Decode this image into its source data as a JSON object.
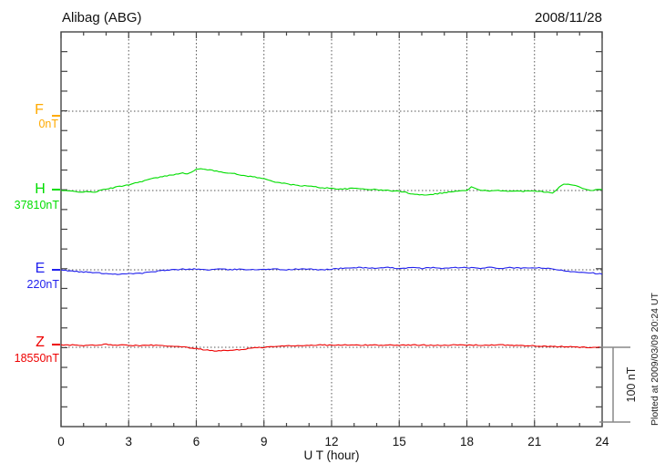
{
  "header": {
    "station": "Alibag (ABG)",
    "date": "2008/11/28"
  },
  "axis": {
    "xlabel": "U T (hour)",
    "ticks": [
      "0",
      "3",
      "6",
      "9",
      "12",
      "15",
      "18",
      "21",
      "24"
    ]
  },
  "scale_bar": {
    "label": "100 nT"
  },
  "footer": {
    "plotted_at": "Plotted at 2009/03/09 20:24 UT"
  },
  "colors": {
    "frame": "#444444",
    "grid": "#555555",
    "scale_bar": "#888888"
  },
  "chart_data": {
    "type": "line",
    "title": "Alibag (ABG) magnetogram",
    "date": "2008/11/28",
    "xlabel": "U T (hour)",
    "x_range": [
      0,
      24
    ],
    "x_tick_step": 3,
    "grid": "dotted",
    "scale_bar_nT": 100,
    "series": [
      {
        "name": "F",
        "baseline_nT": 0,
        "baseline_label": "0nT",
        "color": "#ffaa00",
        "points": []
      },
      {
        "name": "H",
        "baseline_nT": 37810,
        "baseline_label": "37810nT",
        "color": "#00dd00",
        "points": [
          [
            0,
            0
          ],
          [
            0.5,
            -1
          ],
          [
            1,
            -2
          ],
          [
            1.5,
            -2
          ],
          [
            2,
            2
          ],
          [
            2.5,
            5
          ],
          [
            3,
            8
          ],
          [
            3.5,
            12
          ],
          [
            4,
            16
          ],
          [
            4.5,
            19
          ],
          [
            5,
            22
          ],
          [
            5.3,
            24
          ],
          [
            5.6,
            23
          ],
          [
            5.8,
            25
          ],
          [
            6,
            29
          ],
          [
            6.3,
            30
          ],
          [
            6.6,
            28
          ],
          [
            7,
            26
          ],
          [
            7.5,
            24
          ],
          [
            8,
            21
          ],
          [
            8.5,
            19
          ],
          [
            9,
            16
          ],
          [
            9.5,
            12
          ],
          [
            10,
            9
          ],
          [
            10.5,
            7
          ],
          [
            11,
            6
          ],
          [
            11.5,
            4
          ],
          [
            12,
            3
          ],
          [
            12.5,
            2
          ],
          [
            13,
            3
          ],
          [
            13.5,
            2
          ],
          [
            14,
            1
          ],
          [
            14.5,
            0
          ],
          [
            15,
            -1
          ],
          [
            15.5,
            -4
          ],
          [
            16,
            -6
          ],
          [
            16.5,
            -5
          ],
          [
            17,
            -3
          ],
          [
            17.5,
            -1
          ],
          [
            18,
            0
          ],
          [
            18.2,
            5
          ],
          [
            18.4,
            2
          ],
          [
            19,
            -1
          ],
          [
            19.5,
            0
          ],
          [
            20,
            -1
          ],
          [
            20.5,
            -1
          ],
          [
            21,
            0
          ],
          [
            21.5,
            -2
          ],
          [
            21.8,
            -3
          ],
          [
            22,
            2
          ],
          [
            22.3,
            9
          ],
          [
            22.6,
            8
          ],
          [
            23,
            5
          ],
          [
            23.5,
            0
          ],
          [
            24,
            2
          ]
        ]
      },
      {
        "name": "E",
        "baseline_nT": 220,
        "baseline_label": "220nT",
        "color": "#2222ee",
        "points": [
          [
            0,
            0
          ],
          [
            0.5,
            -2
          ],
          [
            1,
            -3
          ],
          [
            1.5,
            -4
          ],
          [
            2,
            -5
          ],
          [
            2.5,
            -6
          ],
          [
            3,
            -5
          ],
          [
            3.5,
            -5
          ],
          [
            4,
            -3
          ],
          [
            4.5,
            -1
          ],
          [
            5,
            0
          ],
          [
            5.5,
            1
          ],
          [
            6,
            1
          ],
          [
            6.5,
            0
          ],
          [
            7,
            1
          ],
          [
            7.5,
            0
          ],
          [
            8,
            1
          ],
          [
            8.5,
            0
          ],
          [
            9,
            1
          ],
          [
            9.5,
            1
          ],
          [
            10,
            0
          ],
          [
            10.5,
            1
          ],
          [
            11,
            1
          ],
          [
            11.5,
            0
          ],
          [
            12,
            1
          ],
          [
            12.5,
            2
          ],
          [
            13,
            3
          ],
          [
            13.5,
            3
          ],
          [
            14,
            2
          ],
          [
            14.5,
            3
          ],
          [
            15,
            2
          ],
          [
            15.5,
            3
          ],
          [
            16,
            2
          ],
          [
            16.5,
            3
          ],
          [
            17,
            2
          ],
          [
            17.5,
            3
          ],
          [
            18,
            3
          ],
          [
            18.5,
            2
          ],
          [
            19,
            3
          ],
          [
            19.5,
            2
          ],
          [
            20,
            3
          ],
          [
            20.5,
            2
          ],
          [
            21,
            3
          ],
          [
            21.5,
            2
          ],
          [
            22,
            0
          ],
          [
            22.5,
            -2
          ],
          [
            23,
            -3
          ],
          [
            23.5,
            -4
          ],
          [
            24,
            -6
          ]
        ]
      },
      {
        "name": "Z",
        "baseline_nT": 18550,
        "baseline_label": "18550nT",
        "color": "#ee0000",
        "points": [
          [
            0,
            3
          ],
          [
            0.5,
            3
          ],
          [
            1,
            2
          ],
          [
            1.5,
            3
          ],
          [
            2,
            4
          ],
          [
            2.5,
            3
          ],
          [
            3,
            3
          ],
          [
            3.5,
            2
          ],
          [
            4,
            3
          ],
          [
            4.5,
            2
          ],
          [
            5,
            1
          ],
          [
            5.5,
            0
          ],
          [
            6,
            -2
          ],
          [
            6.5,
            -4
          ],
          [
            7,
            -5
          ],
          [
            7.5,
            -4
          ],
          [
            8,
            -3
          ],
          [
            8.5,
            -1
          ],
          [
            9,
            0
          ],
          [
            9.5,
            1
          ],
          [
            10,
            2
          ],
          [
            10.5,
            2
          ],
          [
            11,
            3
          ],
          [
            11.5,
            3
          ],
          [
            12,
            3
          ],
          [
            12.5,
            3
          ],
          [
            13,
            3
          ],
          [
            13.5,
            3
          ],
          [
            14,
            3
          ],
          [
            14.5,
            3
          ],
          [
            15,
            3
          ],
          [
            15.5,
            3
          ],
          [
            16,
            3
          ],
          [
            16.5,
            3
          ],
          [
            17,
            3
          ],
          [
            17.5,
            3
          ],
          [
            18,
            3
          ],
          [
            18.5,
            3
          ],
          [
            19,
            3
          ],
          [
            19.5,
            3
          ],
          [
            20,
            3
          ],
          [
            20.5,
            2
          ],
          [
            21,
            2
          ],
          [
            21.5,
            1
          ],
          [
            22,
            1
          ],
          [
            22.5,
            1
          ],
          [
            23,
            0
          ],
          [
            23.5,
            0
          ],
          [
            24,
            0
          ]
        ]
      }
    ]
  }
}
